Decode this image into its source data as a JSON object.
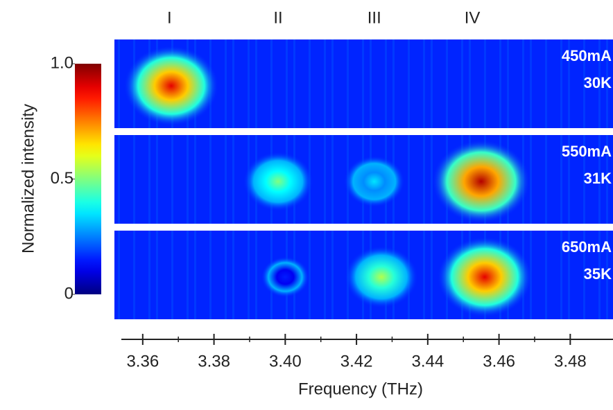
{
  "chart_data": {
    "type": "heatmap",
    "x_label": "Frequency (THz)",
    "xlim": [
      3.354,
      3.492
    ],
    "xticks": [
      3.36,
      3.38,
      {
        "value": 3.4,
        "label": "3.40"
      },
      3.42,
      3.44,
      3.46,
      3.48
    ],
    "peak_labels": [
      {
        "label": "I",
        "x": 3.3675
      },
      {
        "label": "II",
        "x": 3.398
      },
      {
        "label": "III",
        "x": 3.425
      },
      {
        "label": "IV",
        "x": 3.4525
      }
    ],
    "colorbar": {
      "label": "Normalized intensity",
      "lim": [
        0,
        1
      ],
      "ticks": [
        0,
        0.5,
        {
          "value": 1,
          "label": "1.0"
        }
      ]
    },
    "panels": [
      {
        "current": "450mA",
        "temperature": "30K",
        "x": [
          3.368
        ],
        "values": [
          0.9
        ]
      },
      {
        "current": "550mA",
        "temperature": "31K",
        "x": [
          3.398,
          3.425,
          3.455
        ],
        "values": [
          0.5,
          0.35,
          0.95
        ]
      },
      {
        "current": "650mA",
        "temperature": "35K",
        "x": [
          3.4,
          3.427,
          3.456
        ],
        "values": [
          0.15,
          0.55,
          0.9
        ]
      }
    ]
  }
}
